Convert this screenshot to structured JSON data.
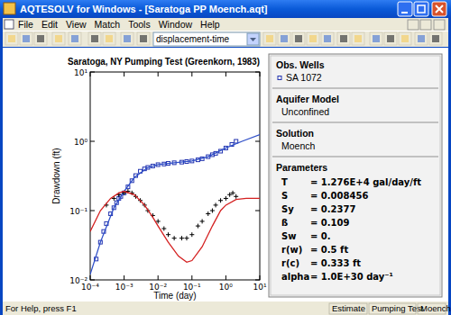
{
  "window": {
    "title": "AQTESOLV for Windows - [Saratoga PP Moench.aqt]",
    "menu": [
      "File",
      "Edit",
      "View",
      "Match",
      "Tools",
      "Window",
      "Help"
    ],
    "view_selector": "displacement-time",
    "status": [
      "For Help, press F1",
      "Estimate",
      "Pumping Test",
      "Moench"
    ]
  },
  "chart_data": {
    "type": "line",
    "title": "Saratoga, NY Pumping Test (Greenkorn, 1983)",
    "x_label": "Time (day)",
    "y_label": "Drawdown (ft)",
    "log": true,
    "grid": false,
    "legend": "right",
    "xlim": [
      0.0001,
      10
    ],
    "ylim": [
      0.01,
      10
    ],
    "xticks": [
      {
        "value": 0.0001,
        "label": "10⁻⁴"
      },
      {
        "value": 0.001,
        "label": "10⁻³"
      },
      {
        "value": 0.01,
        "label": "10⁻²"
      },
      {
        "value": 0.1,
        "label": "10⁻¹"
      },
      {
        "value": 1,
        "label": "10⁰"
      },
      {
        "value": 10,
        "label": "10¹"
      }
    ],
    "yticks": [
      {
        "value": 0.01,
        "label": "10⁻²"
      },
      {
        "value": 0.1,
        "label": "10⁻¹"
      },
      {
        "value": 1,
        "label": "10⁰"
      },
      {
        "value": 10,
        "label": "10¹"
      }
    ],
    "series": [
      {
        "name": "SA 1072",
        "type": "scatter",
        "marker": "square",
        "color": "#2233b0",
        "x": [
          0.00015,
          0.0002,
          0.00025,
          0.0003,
          0.0004,
          0.0005,
          0.0006,
          0.0007,
          0.0008,
          0.001,
          0.0013,
          0.0017,
          0.0022,
          0.003,
          0.004,
          0.005,
          0.007,
          0.01,
          0.015,
          0.02,
          0.03,
          0.05,
          0.07,
          0.1,
          0.15,
          0.2,
          0.3,
          0.4,
          0.5,
          0.7,
          1,
          1.5,
          2
        ],
        "values": [
          0.02,
          0.035,
          0.05,
          0.065,
          0.09,
          0.11,
          0.13,
          0.15,
          0.16,
          0.18,
          0.22,
          0.27,
          0.32,
          0.37,
          0.4,
          0.42,
          0.44,
          0.46,
          0.47,
          0.48,
          0.49,
          0.5,
          0.51,
          0.52,
          0.54,
          0.56,
          0.6,
          0.64,
          0.67,
          0.72,
          0.8,
          0.9,
          1.0
        ]
      },
      {
        "type": "line",
        "line_style": "solid",
        "color": "#2f4fc8",
        "x": [
          0.0001,
          0.0002,
          0.0005,
          0.001,
          0.002,
          0.005,
          0.01,
          0.03,
          0.1,
          0.3,
          1,
          3,
          10
        ],
        "values": [
          0.012,
          0.035,
          0.11,
          0.19,
          0.3,
          0.42,
          0.46,
          0.49,
          0.52,
          0.6,
          0.8,
          1.0,
          1.25
        ]
      },
      {
        "type": "scatter",
        "marker": "plus",
        "color": "#000000",
        "x": [
          0.0003,
          0.0005,
          0.0007,
          0.001,
          0.0013,
          0.0017,
          0.0022,
          0.003,
          0.004,
          0.005,
          0.007,
          0.01,
          0.015,
          0.02,
          0.03,
          0.05,
          0.07,
          0.1,
          0.15,
          0.2,
          0.3,
          0.4,
          0.5,
          0.7,
          1,
          1.3,
          1.6,
          2
        ],
        "values": [
          0.12,
          0.15,
          0.17,
          0.18,
          0.19,
          0.18,
          0.16,
          0.14,
          0.12,
          0.1,
          0.085,
          0.07,
          0.055,
          0.045,
          0.04,
          0.04,
          0.04,
          0.045,
          0.06,
          0.07,
          0.09,
          0.1,
          0.12,
          0.14,
          0.15,
          0.17,
          0.18,
          0.16
        ]
      },
      {
        "type": "line",
        "line_style": "solid",
        "color": "#d42020",
        "x": [
          0.0001,
          0.0002,
          0.0004,
          0.0007,
          0.001,
          0.002,
          0.004,
          0.007,
          0.01,
          0.02,
          0.04,
          0.07,
          0.1,
          0.2,
          0.4,
          0.7,
          1,
          2,
          4,
          10
        ],
        "values": [
          0.05,
          0.1,
          0.15,
          0.18,
          0.19,
          0.17,
          0.12,
          0.08,
          0.06,
          0.035,
          0.022,
          0.018,
          0.019,
          0.03,
          0.06,
          0.1,
          0.12,
          0.145,
          0.15,
          0.15
        ]
      }
    ]
  },
  "panel": {
    "sections": [
      {
        "heading": "Obs. Wells"
      },
      {
        "heading": "Aquifer Model",
        "text": "Unconfined"
      },
      {
        "heading": "Solution",
        "text": "Moench"
      },
      {
        "heading": "Parameters",
        "rows": [
          {
            "name": "T",
            "text": "= 1.276E+4 gal/day/ft"
          },
          {
            "name": "S",
            "text": "= 0.008456"
          },
          {
            "name": "Sy",
            "text": "= 0.2377"
          },
          {
            "name": "ß",
            "text": "= 0.109"
          },
          {
            "name": "Sw",
            "text": "= 0."
          },
          {
            "name": "r(w)",
            "text": "= 0.5 ft"
          },
          {
            "name": "r(c)",
            "text": "= 0.333 ft"
          },
          {
            "name": "alpha",
            "text": "= 1.0E+30 day⁻¹"
          }
        ]
      }
    ]
  }
}
